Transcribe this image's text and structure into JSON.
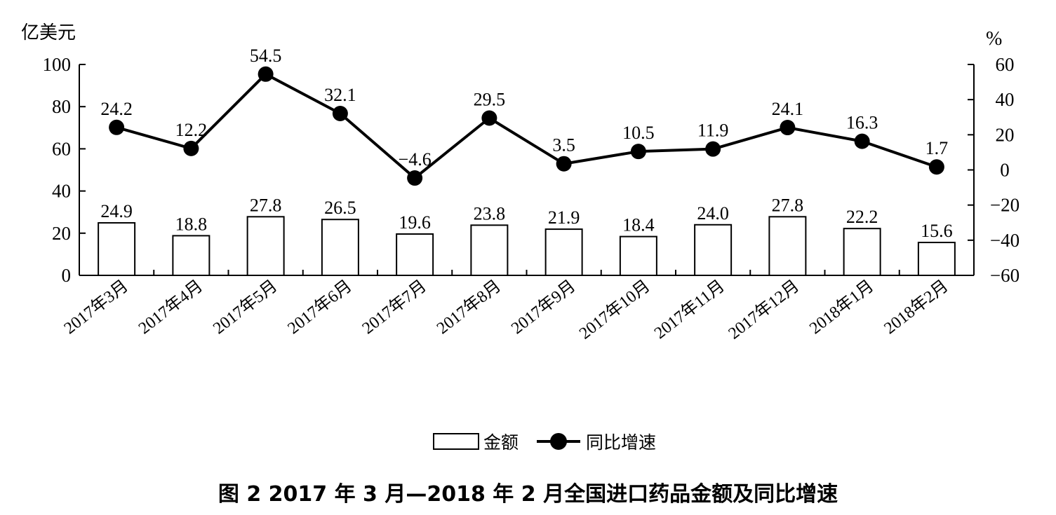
{
  "chart_data": {
    "type": "bar+line",
    "categories": [
      "2017年3月",
      "2017年4月",
      "2017年5月",
      "2017年6月",
      "2017年7月",
      "2017年8月",
      "2017年9月",
      "2017年10月",
      "2017年11月",
      "2017年12月",
      "2018年1月",
      "2018年2月"
    ],
    "series": [
      {
        "name": "金额",
        "type": "bar",
        "axis": "left",
        "values": [
          24.9,
          18.8,
          27.8,
          26.5,
          19.6,
          23.8,
          21.9,
          18.4,
          24.0,
          27.8,
          22.2,
          15.6
        ],
        "labels": [
          "24.9",
          "18.8",
          "27.8",
          "26.5",
          "19.6",
          "23.8",
          "21.9",
          "18.4",
          "24.0",
          "27.8",
          "22.2",
          "15.6"
        ]
      },
      {
        "name": "同比增速",
        "type": "line",
        "axis": "right",
        "values": [
          24.2,
          12.2,
          54.5,
          32.1,
          -4.6,
          29.5,
          3.5,
          10.5,
          11.9,
          24.1,
          16.3,
          1.7
        ],
        "labels": [
          "24.2",
          "12.2",
          "54.5",
          "32.1",
          "−4.6",
          "29.5",
          "3.5",
          "10.5",
          "11.9",
          "24.1",
          "16.3",
          "1.7"
        ]
      }
    ],
    "y_left": {
      "label": "亿美元",
      "ylim": [
        0,
        100
      ],
      "ticks": [
        0,
        20,
        40,
        60,
        80,
        100
      ]
    },
    "y_right": {
      "label": "%",
      "ylim": [
        -60,
        60
      ],
      "ticks": [
        -60,
        -40,
        -20,
        0,
        20,
        40,
        60
      ],
      "tick_labels": [
        "−60",
        "−40",
        "−20",
        "0",
        "20",
        "40",
        "60"
      ]
    },
    "legend": {
      "placement": "bottom-center"
    },
    "grid": false,
    "title": "图 2   2017 年 3 月—2018 年 2 月全国进口药品金额及同比增速"
  }
}
